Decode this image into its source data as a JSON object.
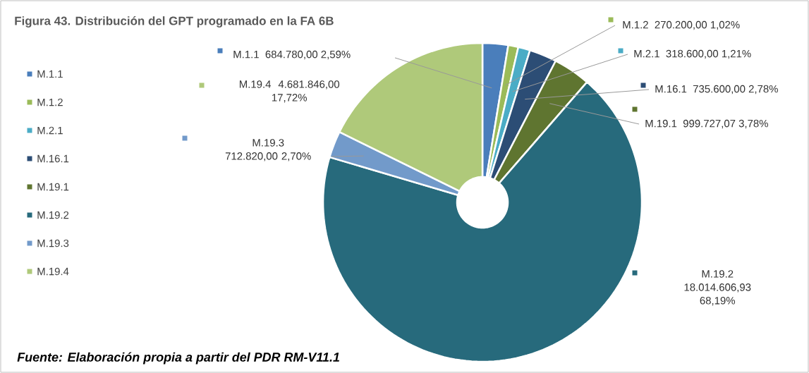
{
  "chart_data": {
    "type": "donut",
    "title": "Figura 43. Distribución del GPT programado en la FA 6B",
    "categories": [
      "M.1.1",
      "M.1.2",
      "M.2.1",
      "M.16.1",
      "M.19.1",
      "M.19.2",
      "M.19.3",
      "M.19.4"
    ],
    "values": [
      684780.0,
      270200.0,
      318600.0,
      735600.0,
      999727.07,
      18014606.93,
      712820.0,
      4681846.0
    ],
    "value_labels": [
      "684.780,00  2,59%",
      "270.200,00  1,02%",
      "318.600,00  1,21%",
      "735.600,00  2,78%",
      "999.727,07  3,78%",
      "18.014.606,93 68,19%",
      "712.820,00 2,70%",
      "4.681.846,00 17,72%"
    ],
    "colors": [
      "#4a7ebb",
      "#9bbb59",
      "#4bacc6",
      "#2c4d75",
      "#5f7530",
      "#276a7c",
      "#729aca",
      "#afc97a"
    ],
    "legend": "left",
    "annotations": [
      "*Fuente: Elaboración propia a partir del PDR RM-V11.1*"
    ]
  }
}
